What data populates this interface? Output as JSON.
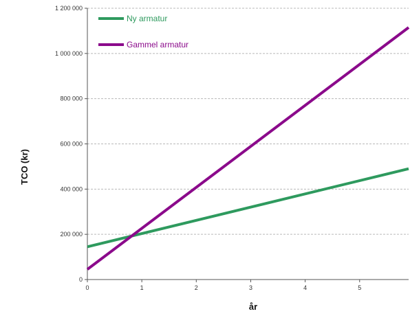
{
  "chart_data": {
    "type": "line",
    "title": "",
    "xlabel": "år",
    "ylabel": "TCO (kr)",
    "xlim": [
      0,
      5.9
    ],
    "ylim": [
      0,
      1200000
    ],
    "x_ticks": [
      0,
      1,
      2,
      3,
      4,
      5
    ],
    "x_tick_labels": [
      "0",
      "1",
      "2",
      "3",
      "4",
      "5"
    ],
    "y_ticks": [
      0,
      200000,
      400000,
      600000,
      800000,
      1000000,
      1200000
    ],
    "y_tick_labels": [
      "0",
      "200 000",
      "400 000",
      "600 000",
      "800 000",
      "1 000 000",
      "1 200 000"
    ],
    "grid": "horizontal dashed",
    "legend_position": "top-left",
    "series": [
      {
        "name": "Ny armatur",
        "color": "#2e9a5e",
        "x": [
          0,
          5.9
        ],
        "y": [
          145000,
          490000
        ]
      },
      {
        "name": "Gammel armatur",
        "color": "#8b0a8b",
        "x": [
          0,
          5.9
        ],
        "y": [
          45000,
          1115000
        ]
      }
    ]
  }
}
